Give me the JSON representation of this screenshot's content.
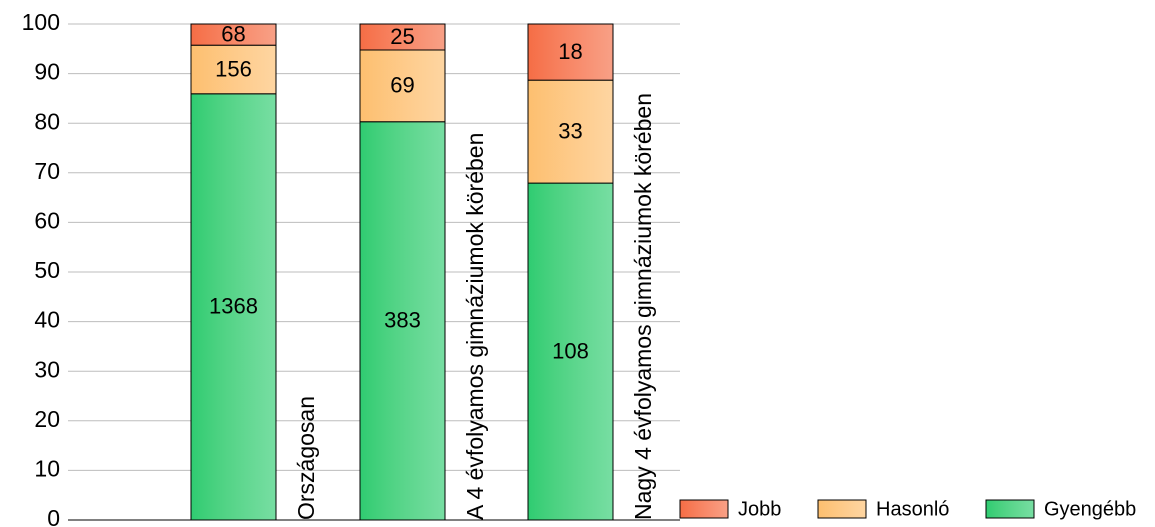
{
  "chart_data": {
    "type": "bar",
    "stacked": true,
    "normalize": true,
    "categories": [
      "Országosan",
      "A 4 évfolyamos gimnáziumok körében",
      "Nagy 4 évfolyamos gimnáziumok körében"
    ],
    "series": [
      {
        "name": "Gyengébb",
        "color": "#2ecc71",
        "values": [
          1368,
          383,
          108
        ]
      },
      {
        "name": "Hasonló",
        "color": "#fdbf6f",
        "values": [
          156,
          69,
          33
        ]
      },
      {
        "name": "Jobb",
        "color": "#f56d45",
        "values": [
          68,
          25,
          18
        ]
      }
    ],
    "legend_order": [
      "Jobb",
      "Hasonló",
      "Gyengébb"
    ],
    "ylim": [
      0,
      100
    ],
    "yticks": [
      0,
      10,
      20,
      30,
      40,
      50,
      60,
      70,
      80,
      90,
      100
    ],
    "grid": true
  }
}
